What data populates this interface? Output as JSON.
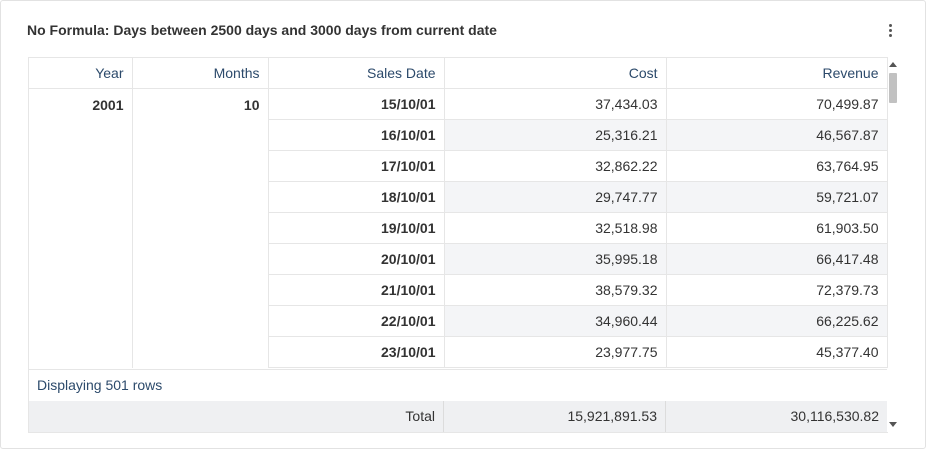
{
  "widget": {
    "title": "No Formula: Days between 2500 days and 3000 days from current date",
    "menu_icon": "more-vertical-icon"
  },
  "table": {
    "headers": [
      "Year",
      "Months",
      "Sales Date",
      "Cost",
      "Revenue"
    ],
    "year": "2001",
    "month": "10",
    "rows": [
      {
        "date": "15/10/01",
        "cost": "37,434.03",
        "revenue": "70,499.87"
      },
      {
        "date": "16/10/01",
        "cost": "25,316.21",
        "revenue": "46,567.87"
      },
      {
        "date": "17/10/01",
        "cost": "32,862.22",
        "revenue": "63,764.95"
      },
      {
        "date": "18/10/01",
        "cost": "29,747.77",
        "revenue": "59,721.07"
      },
      {
        "date": "19/10/01",
        "cost": "32,518.98",
        "revenue": "61,903.50"
      },
      {
        "date": "20/10/01",
        "cost": "35,995.18",
        "revenue": "66,417.48"
      },
      {
        "date": "21/10/01",
        "cost": "38,579.32",
        "revenue": "72,379.73"
      },
      {
        "date": "22/10/01",
        "cost": "34,960.44",
        "revenue": "66,225.62"
      },
      {
        "date": "23/10/01",
        "cost": "23,977.75",
        "revenue": "45,377.40"
      }
    ],
    "row_count_text": "Displaying 501 rows",
    "totals": {
      "label": "Total",
      "cost": "15,921,891.53",
      "revenue": "30,116,530.82"
    }
  }
}
